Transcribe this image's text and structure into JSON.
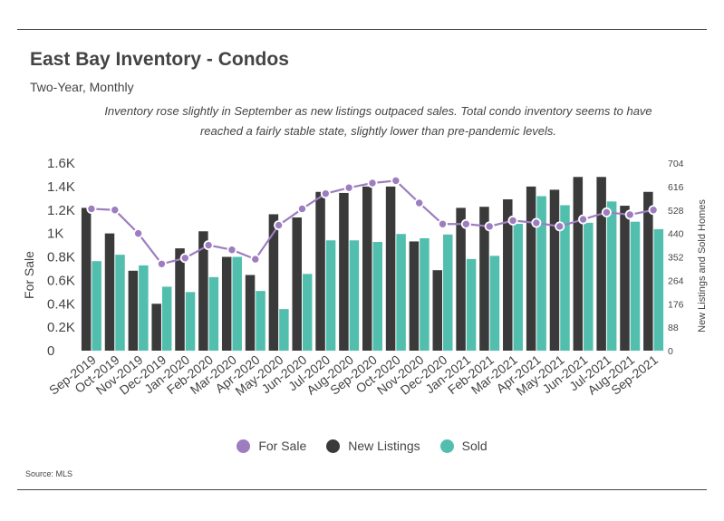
{
  "title": "East Bay Inventory - Condos",
  "subtitle": "Two-Year, Monthly",
  "annotation": "Inventory rose slightly in September as new listings outpaced sales. Total condo inventory seems to have reached a fairly stable state, slightly lower than pre-pandemic levels.",
  "source": "Source:  MLS",
  "colors": {
    "for_sale": "#9d7dbf",
    "new_listings": "#3a3a3a",
    "sold": "#52bfae"
  },
  "chart_data": {
    "type": "bar",
    "categories": [
      "Sep-2019",
      "Oct-2019",
      "Nov-2019",
      "Dec-2019",
      "Jan-2020",
      "Feb-2020",
      "Mar-2020",
      "Apr-2020",
      "May-2020",
      "Jun-2020",
      "Jul-2020",
      "Aug-2020",
      "Sep-2020",
      "Oct-2020",
      "Nov-2020",
      "Dec-2020",
      "Jan-2021",
      "Feb-2021",
      "Mar-2021",
      "Apr-2021",
      "May-2021",
      "Jun-2021",
      "Jul-2021",
      "Aug-2021",
      "Sep-2021"
    ],
    "y_left": {
      "label": "For Sale",
      "min": 0,
      "max": 1600,
      "ticks": [
        "0",
        "0.2K",
        "0.4K",
        "0.6K",
        "0.8K",
        "1K",
        "1.2K",
        "1.4K",
        "1.6K"
      ]
    },
    "y_right": {
      "label": "New Listings and Sold Homes",
      "min": 0,
      "max": 704,
      "ticks": [
        "0",
        "88",
        "176",
        "264",
        "352",
        "440",
        "528",
        "616",
        "704"
      ]
    },
    "series": [
      {
        "name": "For Sale",
        "type": "line",
        "axis": "left",
        "values": [
          1210,
          1200,
          1000,
          740,
          790,
          900,
          860,
          780,
          1070,
          1210,
          1340,
          1390,
          1430,
          1450,
          1260,
          1080,
          1080,
          1060,
          1110,
          1090,
          1060,
          1120,
          1180,
          1160,
          1200
        ]
      },
      {
        "name": "New Listings",
        "type": "bar",
        "axis": "right",
        "values": [
          536,
          440,
          300,
          176,
          384,
          448,
          352,
          284,
          512,
          500,
          596,
          592,
          616,
          616,
          410,
          302,
          536,
          540,
          568,
          616,
          604,
          652,
          652,
          544,
          596
        ]
      },
      {
        "name": "Sold",
        "type": "bar",
        "axis": "right",
        "values": [
          336,
          360,
          320,
          240,
          220,
          276,
          352,
          224,
          156,
          288,
          414,
          414,
          408,
          438,
          422,
          436,
          344,
          356,
          476,
          580,
          546,
          480,
          560,
          484,
          456
        ]
      }
    ]
  }
}
